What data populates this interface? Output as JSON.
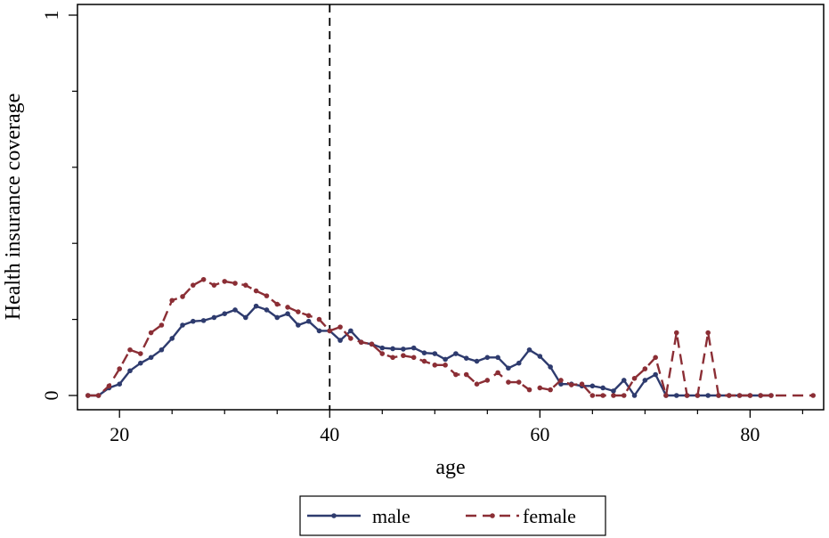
{
  "chart_data": {
    "type": "line",
    "title": "",
    "xlabel": "age",
    "ylabel": "Health insurance coverage",
    "xlim": [
      16,
      87
    ],
    "ylim": [
      0,
      1
    ],
    "xticks": [
      20,
      40,
      60,
      80
    ],
    "yticks": [
      0,
      1
    ],
    "vline": 40,
    "legend_position": "bottom",
    "series": [
      {
        "name": "male",
        "color": "#2E3B6E",
        "dash": "solid",
        "x": [
          17,
          18,
          19,
          20,
          21,
          22,
          23,
          24,
          25,
          26,
          27,
          28,
          29,
          30,
          31,
          32,
          33,
          34,
          35,
          36,
          37,
          38,
          39,
          40,
          41,
          42,
          43,
          44,
          45,
          46,
          47,
          48,
          49,
          50,
          51,
          52,
          53,
          54,
          55,
          56,
          57,
          58,
          59,
          60,
          61,
          62,
          63,
          64,
          65,
          66,
          67,
          68,
          69,
          70,
          71,
          72,
          73,
          74,
          75,
          76,
          77,
          78,
          79,
          80,
          81,
          82
        ],
        "values": [
          0,
          0,
          0.02,
          0.03,
          0.065,
          0.085,
          0.1,
          0.12,
          0.15,
          0.185,
          0.195,
          0.197,
          0.205,
          0.215,
          0.225,
          0.205,
          0.235,
          0.225,
          0.205,
          0.215,
          0.185,
          0.195,
          0.17,
          0.17,
          0.145,
          0.17,
          0.14,
          0.135,
          0.125,
          0.123,
          0.122,
          0.125,
          0.112,
          0.11,
          0.095,
          0.11,
          0.098,
          0.09,
          0.1,
          0.1,
          0.072,
          0.085,
          0.12,
          0.103,
          0.075,
          0.03,
          0.03,
          0.025,
          0.025,
          0.02,
          0.012,
          0.04,
          0,
          0.04,
          0.055,
          0,
          0,
          0,
          0,
          0,
          0,
          0,
          0,
          0,
          0,
          0
        ]
      },
      {
        "name": "female",
        "color": "#8B2E35",
        "dash": "long-dash",
        "x": [
          17,
          18,
          19,
          20,
          21,
          22,
          23,
          24,
          25,
          26,
          27,
          28,
          29,
          30,
          31,
          32,
          33,
          34,
          35,
          36,
          37,
          38,
          39,
          40,
          41,
          42,
          43,
          44,
          45,
          46,
          47,
          48,
          49,
          50,
          51,
          52,
          53,
          54,
          55,
          56,
          57,
          58,
          59,
          60,
          61,
          62,
          63,
          64,
          65,
          66,
          67,
          68,
          69,
          70,
          71,
          72,
          73,
          74,
          75,
          76,
          77,
          78,
          79,
          80,
          81,
          82,
          86
        ],
        "values": [
          0,
          0,
          0.025,
          0.07,
          0.12,
          0.11,
          0.165,
          0.185,
          0.25,
          0.26,
          0.29,
          0.305,
          0.29,
          0.3,
          0.295,
          0.29,
          0.275,
          0.262,
          0.24,
          0.232,
          0.22,
          0.21,
          0.2,
          0.17,
          0.18,
          0.15,
          0.14,
          0.135,
          0.11,
          0.1,
          0.105,
          0.1,
          0.09,
          0.08,
          0.08,
          0.055,
          0.055,
          0.03,
          0.04,
          0.06,
          0.035,
          0.035,
          0.015,
          0.02,
          0.015,
          0.04,
          0.028,
          0.03,
          0,
          0,
          0,
          0,
          0.045,
          0.07,
          0.1,
          0,
          0.165,
          0,
          0,
          0.165,
          0,
          0,
          0,
          0,
          0,
          0,
          0
        ]
      }
    ]
  }
}
